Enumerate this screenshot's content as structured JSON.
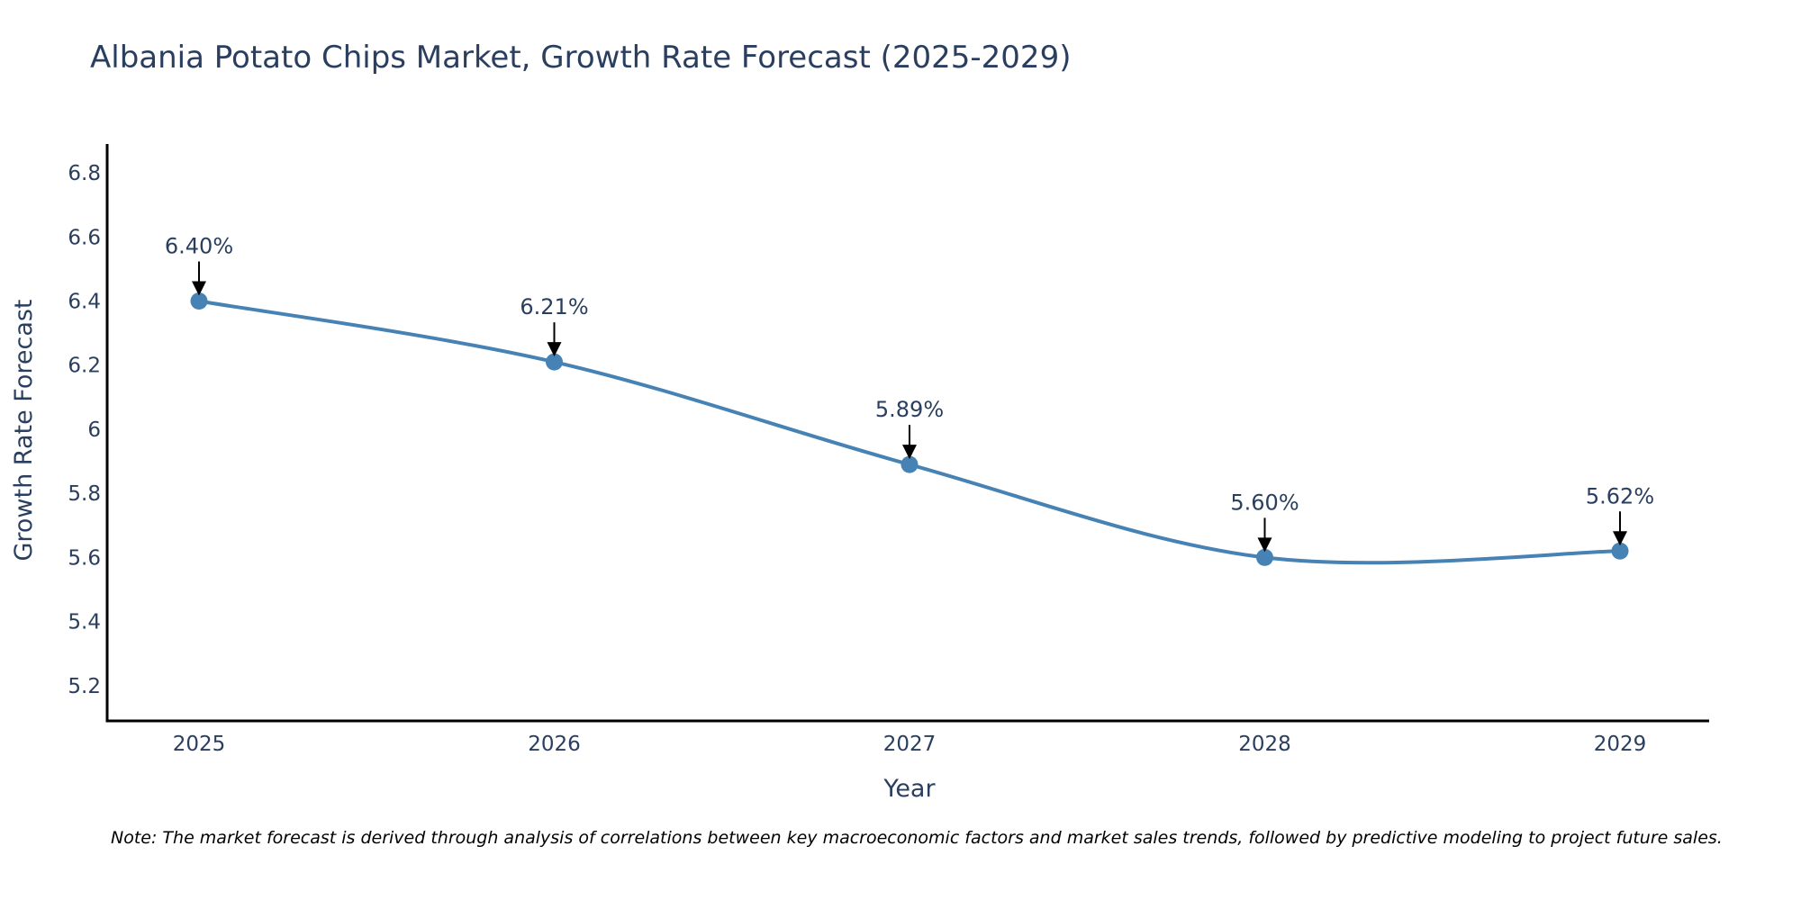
{
  "chart_data": {
    "type": "line",
    "title": "Albania Potato Chips Market, Growth Rate Forecast (2025-2029)",
    "xlabel": "Year",
    "ylabel": "Growth Rate Forecast",
    "categories": [
      "2025",
      "2026",
      "2027",
      "2028",
      "2029"
    ],
    "series": [
      {
        "name": "Growth Rate Forecast",
        "values": [
          6.4,
          6.21,
          5.89,
          5.6,
          5.62
        ],
        "labels": [
          "6.40%",
          "6.21%",
          "5.89%",
          "5.60%",
          "5.62%"
        ]
      }
    ],
    "ylim": [
      5.09,
      6.89
    ],
    "yticks": [
      5.2,
      5.4,
      5.6,
      5.8,
      6,
      6.2,
      6.4,
      6.6,
      6.8
    ],
    "ytick_labels": [
      "5.2",
      "5.4",
      "5.6",
      "5.8",
      "6",
      "6.2",
      "6.4",
      "6.6",
      "6.8"
    ],
    "line_shape": "spline",
    "grid": false,
    "colors": {
      "line": "#4682b4",
      "marker": "#4682b4",
      "arrow": "#000000",
      "axis": "#000000",
      "text": "#2a3f5f"
    }
  },
  "note": "Note: The market forecast is derived through analysis of correlations between key macroeconomic factors and market sales trends, followed by predictive modeling to project future sales."
}
